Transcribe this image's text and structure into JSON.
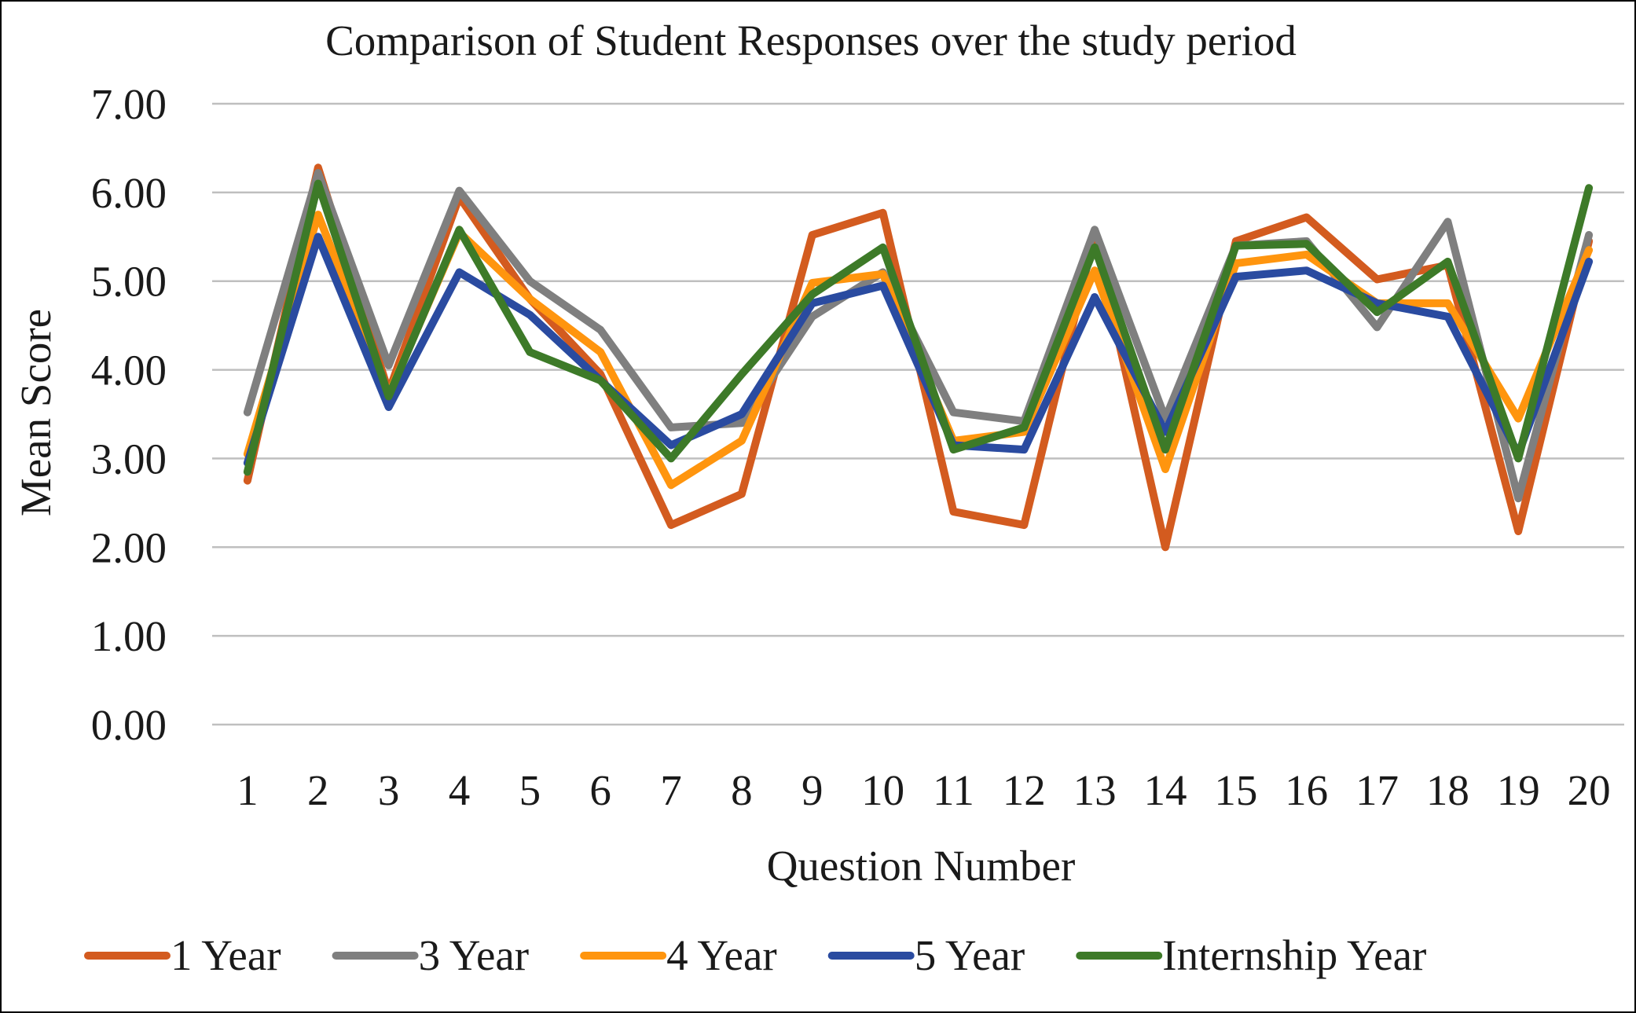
{
  "chart_data": {
    "type": "line",
    "title": "Comparison of Student Responses over the study period",
    "xlabel": "Question Number",
    "ylabel": "Mean Score",
    "ylim": [
      0,
      7
    ],
    "yticks": [
      "0.00",
      "1.00",
      "2.00",
      "3.00",
      "4.00",
      "5.00",
      "6.00",
      "7.00"
    ],
    "categories": [
      "1",
      "2",
      "3",
      "4",
      "5",
      "6",
      "7",
      "8",
      "9",
      "10",
      "11",
      "12",
      "13",
      "14",
      "15",
      "16",
      "17",
      "18",
      "19",
      "20"
    ],
    "grid": "horizontal",
    "legend_position": "bottom",
    "series": [
      {
        "name": "1 Year",
        "color": "#D35B1F",
        "values": [
          2.75,
          6.28,
          3.75,
          5.95,
          4.8,
          3.95,
          2.25,
          2.6,
          5.52,
          5.77,
          2.4,
          2.25,
          5.52,
          2.0,
          5.45,
          5.72,
          5.02,
          5.18,
          2.18,
          5.45
        ]
      },
      {
        "name": "3 Year",
        "color": "#7F7F7F",
        "values": [
          3.52,
          6.22,
          4.05,
          6.02,
          5.0,
          4.45,
          3.35,
          3.4,
          4.6,
          5.1,
          3.52,
          3.42,
          5.58,
          3.45,
          5.4,
          5.45,
          4.48,
          5.67,
          2.55,
          5.52
        ]
      },
      {
        "name": "4 Year",
        "color": "#FF950E",
        "values": [
          3.05,
          5.75,
          3.72,
          5.55,
          4.8,
          4.2,
          2.7,
          3.2,
          4.98,
          5.08,
          3.2,
          3.3,
          5.12,
          2.88,
          5.2,
          5.3,
          4.75,
          4.75,
          3.45,
          5.35
        ]
      },
      {
        "name": "5 Year",
        "color": "#2A4BA0",
        "values": [
          2.95,
          5.5,
          3.58,
          5.1,
          4.62,
          3.88,
          3.15,
          3.5,
          4.75,
          4.95,
          3.15,
          3.1,
          4.82,
          3.3,
          5.05,
          5.12,
          4.75,
          4.6,
          3.05,
          5.22
        ]
      },
      {
        "name": "Internship Year",
        "color": "#3D7A28",
        "values": [
          2.85,
          6.1,
          3.7,
          5.58,
          4.2,
          3.88,
          3.0,
          3.95,
          4.85,
          5.38,
          3.1,
          3.35,
          5.38,
          3.1,
          5.4,
          5.42,
          4.65,
          5.22,
          3.0,
          6.05
        ]
      }
    ]
  }
}
